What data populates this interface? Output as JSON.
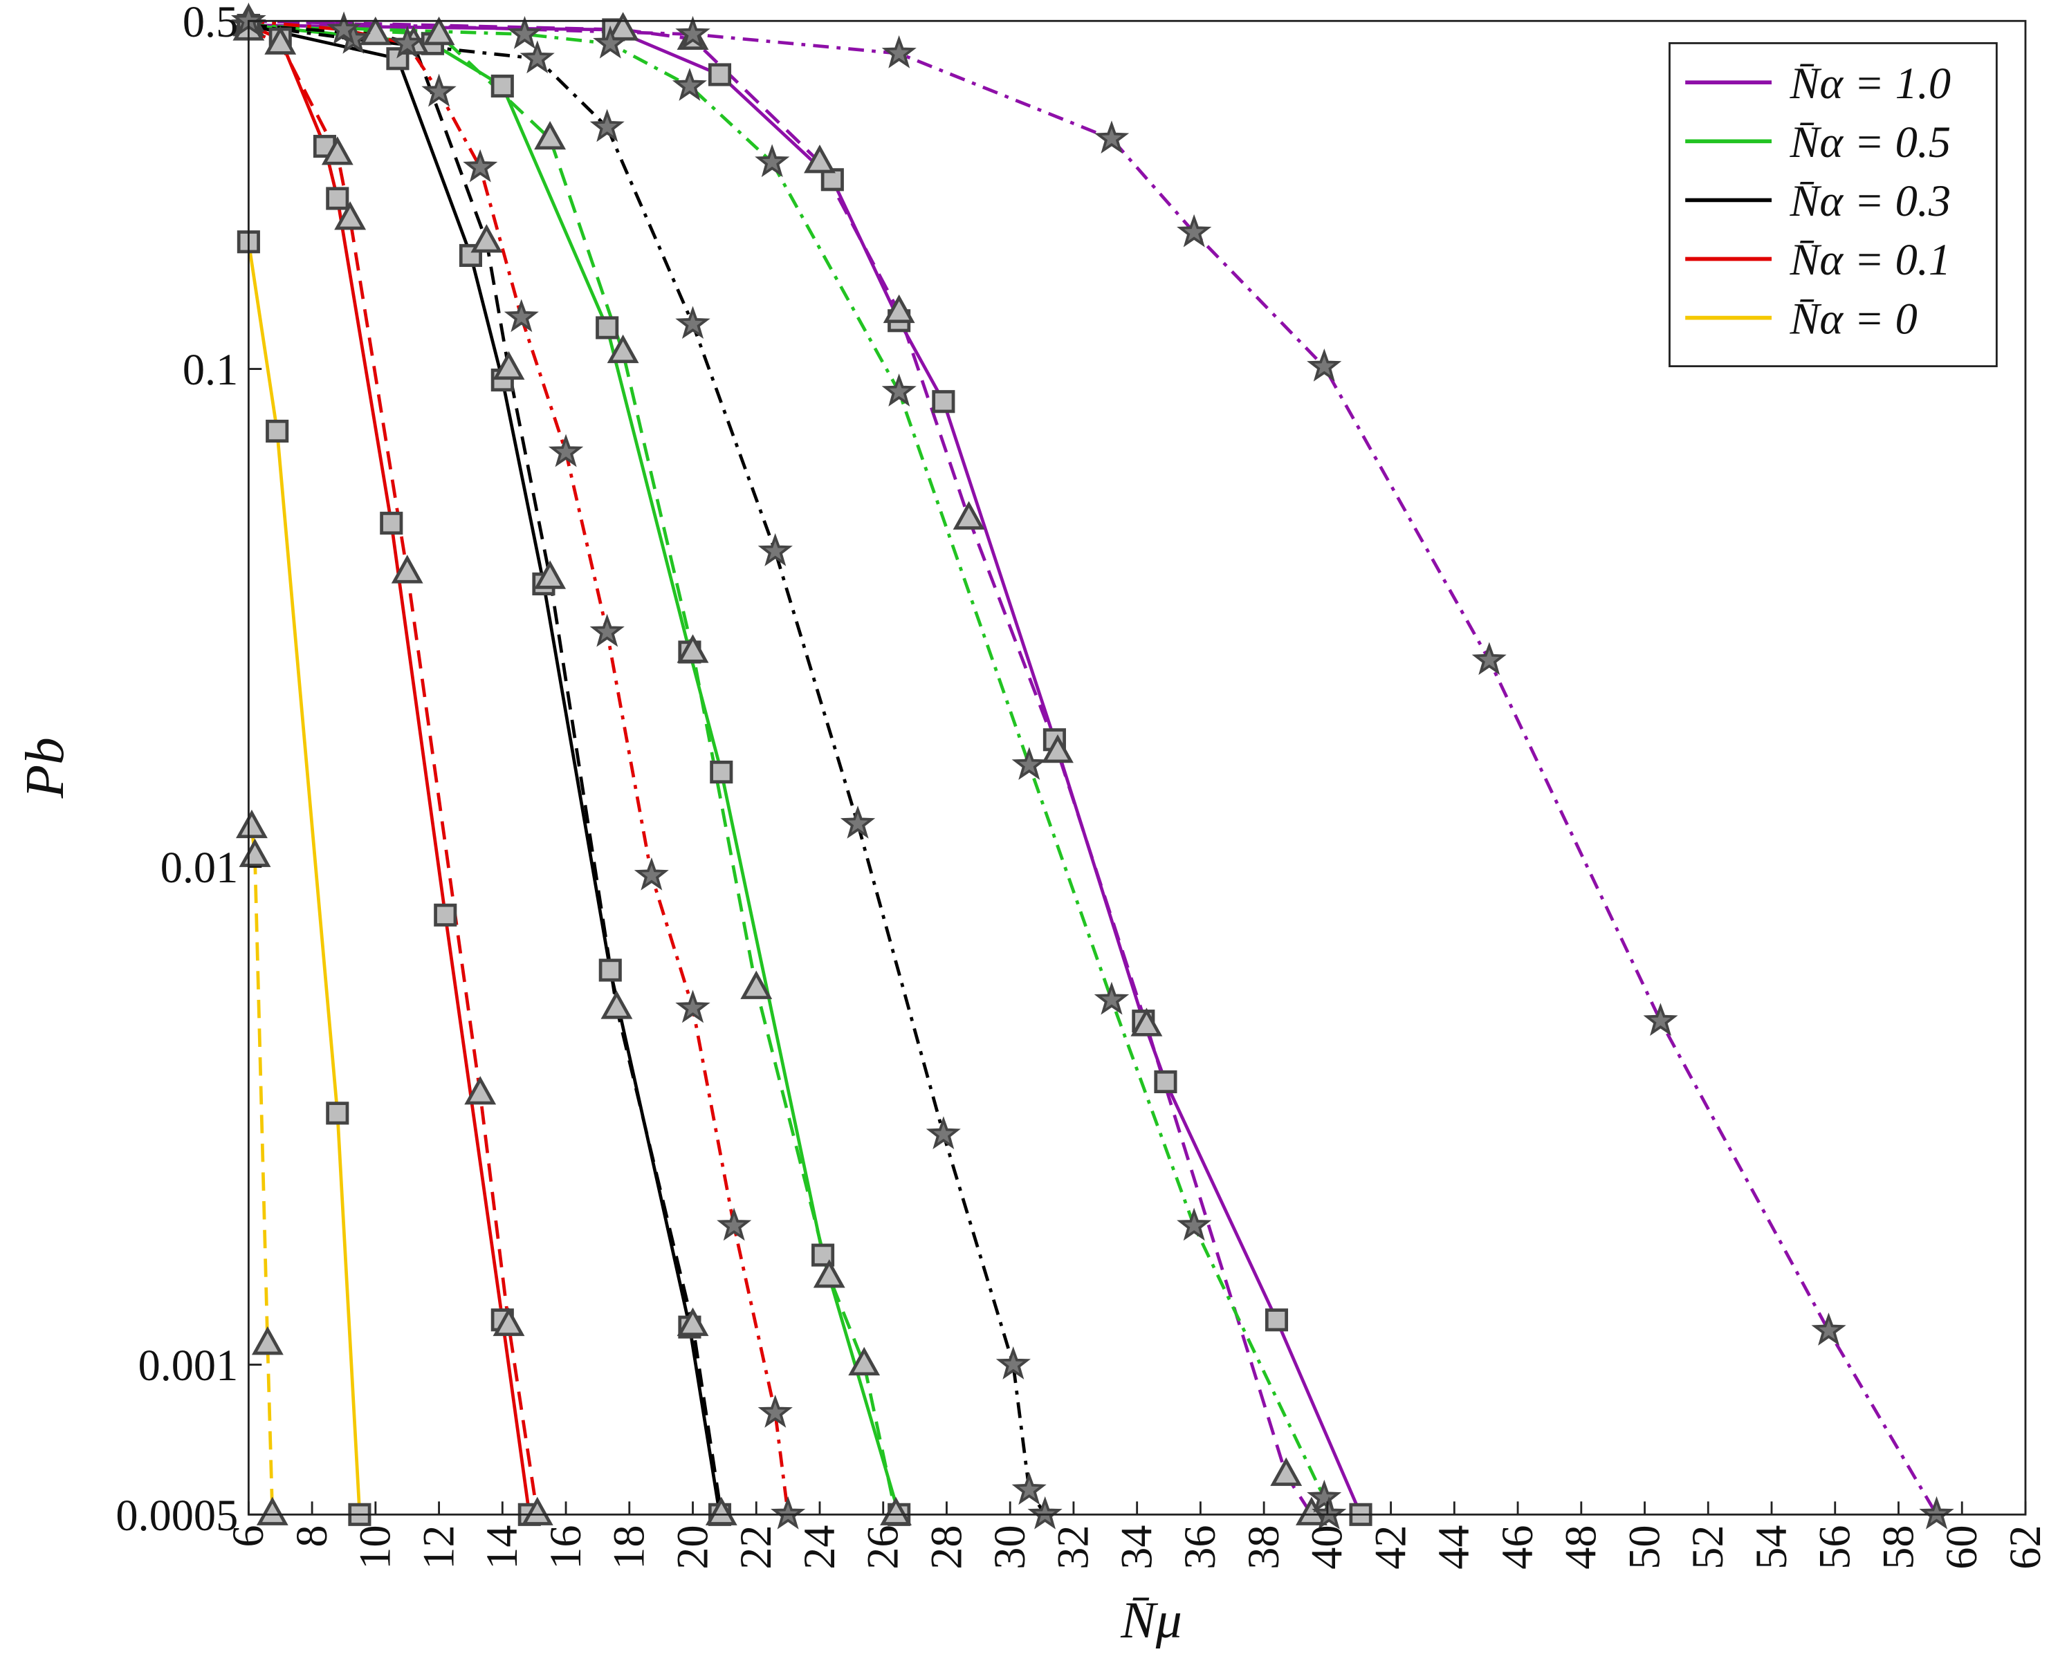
{
  "chart_data": {
    "type": "line",
    "x_label": "N̄μ",
    "y_label": "Pb",
    "xlim": [
      6,
      62
    ],
    "xticks": [
      6,
      8,
      10,
      12,
      14,
      16,
      18,
      20,
      22,
      24,
      26,
      28,
      30,
      32,
      34,
      36,
      38,
      40,
      42,
      44,
      46,
      48,
      50,
      52,
      54,
      56,
      58,
      60,
      62
    ],
    "ylim": [
      0.0005,
      0.5
    ],
    "yticks": [
      0.0005,
      0.001,
      0.01,
      0.1,
      0.5
    ],
    "log_y": true,
    "grid": true,
    "legend": "top-right",
    "series": [
      {
        "name": "N̄α = 1.0",
        "color": "#8e0fa8",
        "dash": "solid",
        "marker": "square",
        "x": [
          6,
          17.5,
          20.85,
          24.4,
          26.5,
          27.9,
          31.4,
          34.2,
          34.9,
          38.4,
          41.05
        ],
        "values": [
          0.49,
          0.48,
          0.39,
          0.24,
          0.125,
          0.086,
          0.018,
          0.0049,
          0.0037,
          0.00123,
          0.0005
        ]
      },
      {
        "color": "#8e0fa8",
        "dash": "dashed",
        "marker": "triangle",
        "x": [
          6,
          17.8,
          20,
          24,
          26.5,
          28.7,
          31.5,
          34.3,
          38.7,
          39.5
        ],
        "values": [
          0.5,
          0.48,
          0.46,
          0.26,
          0.13,
          0.05,
          0.017,
          0.0048,
          0.0006,
          0.0005
        ]
      },
      {
        "color": "#8e0fa8",
        "dash": "dashdot",
        "marker": "star",
        "x": [
          6,
          20,
          26.5,
          33.2,
          35.8,
          39.9,
          45.1,
          50.5,
          55.8,
          59.2
        ],
        "values": [
          0.5,
          0.47,
          0.43,
          0.29,
          0.188,
          0.101,
          0.026,
          0.0049,
          0.00117,
          0.0005
        ]
      },
      {
        "name": "N̄α = 0.5",
        "color": "#22c322",
        "dash": "solid",
        "marker": "square",
        "x": [
          6,
          11.8,
          14,
          17.3,
          19.9,
          20.9,
          24.1,
          26.5
        ],
        "values": [
          0.49,
          0.45,
          0.37,
          0.121,
          0.027,
          0.0155,
          0.00166,
          0.0005
        ]
      },
      {
        "color": "#22c322",
        "dash": "dashed",
        "marker": "triangle",
        "x": [
          6,
          12,
          15.5,
          17.8,
          20,
          22,
          24.3,
          25.4,
          26.4
        ],
        "values": [
          0.49,
          0.47,
          0.29,
          0.108,
          0.027,
          0.0057,
          0.0015,
          0.001,
          0.0005
        ]
      },
      {
        "color": "#22c322",
        "dash": "dashdot",
        "marker": "star",
        "x": [
          6,
          14.7,
          17.4,
          19.9,
          22.5,
          26.5,
          30.6,
          33.2,
          35.8,
          39.9,
          40.05
        ],
        "values": [
          0.49,
          0.47,
          0.45,
          0.37,
          0.26,
          0.09,
          0.016,
          0.0054,
          0.0019,
          0.00054,
          0.0005
        ]
      },
      {
        "name": "N̄α = 0.3",
        "color": "#000000",
        "dash": "solid",
        "marker": "square",
        "x": [
          6,
          10.7,
          13,
          14,
          15.3,
          17.4,
          19.9,
          20.85
        ],
        "values": [
          0.49,
          0.42,
          0.169,
          0.095,
          0.037,
          0.0062,
          0.00119,
          0.0005
        ]
      },
      {
        "color": "#000000",
        "dash": "dashed",
        "marker": "triangle",
        "x": [
          6,
          10,
          11.2,
          13.5,
          14.2,
          15.5,
          17.6,
          20,
          20.9
        ],
        "values": [
          0.49,
          0.47,
          0.45,
          0.18,
          0.1,
          0.038,
          0.0052,
          0.0012,
          0.0005
        ]
      },
      {
        "color": "#000000",
        "dash": "dashdot",
        "marker": "star",
        "x": [
          6,
          9.3,
          15.1,
          17.3,
          20,
          22.6,
          25.2,
          27.9,
          30.1,
          30.6,
          31.1
        ],
        "values": [
          0.49,
          0.46,
          0.42,
          0.306,
          0.123,
          0.043,
          0.0122,
          0.0029,
          0.001,
          0.00056,
          0.0005
        ]
      },
      {
        "name": "N̄α = 0.1",
        "color": "#e00000",
        "dash": "solid",
        "marker": "square",
        "x": [
          6,
          7,
          8.4,
          8.8,
          10.5,
          12.2,
          14,
          14.85
        ],
        "values": [
          0.49,
          0.46,
          0.28,
          0.22,
          0.049,
          0.008,
          0.00123,
          0.0005
        ]
      },
      {
        "color": "#e00000",
        "dash": "dashed",
        "marker": "triangle",
        "x": [
          6,
          7,
          8.8,
          9.2,
          11,
          13.3,
          14.2,
          15.1
        ],
        "values": [
          0.48,
          0.45,
          0.27,
          0.2,
          0.039,
          0.0035,
          0.0012,
          0.0005
        ]
      },
      {
        "color": "#e00000",
        "dash": "dashdot",
        "marker": "star",
        "x": [
          6,
          9,
          11,
          12,
          13.3,
          14.6,
          16,
          17.3,
          18.7,
          20,
          21.3,
          22.6,
          23
        ],
        "values": [
          0.5,
          0.48,
          0.45,
          0.36,
          0.254,
          0.127,
          0.068,
          0.0296,
          0.0096,
          0.0052,
          0.0019,
          0.0008,
          0.0005
        ]
      },
      {
        "name": "N̄α = 0",
        "color": "#f5c800",
        "dash": "solid",
        "marker": "square",
        "x": [
          6,
          6.9,
          8.8,
          9.5
        ],
        "values": [
          0.18,
          0.075,
          0.0032,
          0.0005
        ]
      },
      {
        "color": "#f5c800",
        "dash": "dashed",
        "marker": "triangle",
        "x": [
          6.1,
          6.2,
          6.6,
          6.75
        ],
        "values": [
          0.012,
          0.0105,
          0.0011,
          0.0005
        ]
      }
    ]
  }
}
